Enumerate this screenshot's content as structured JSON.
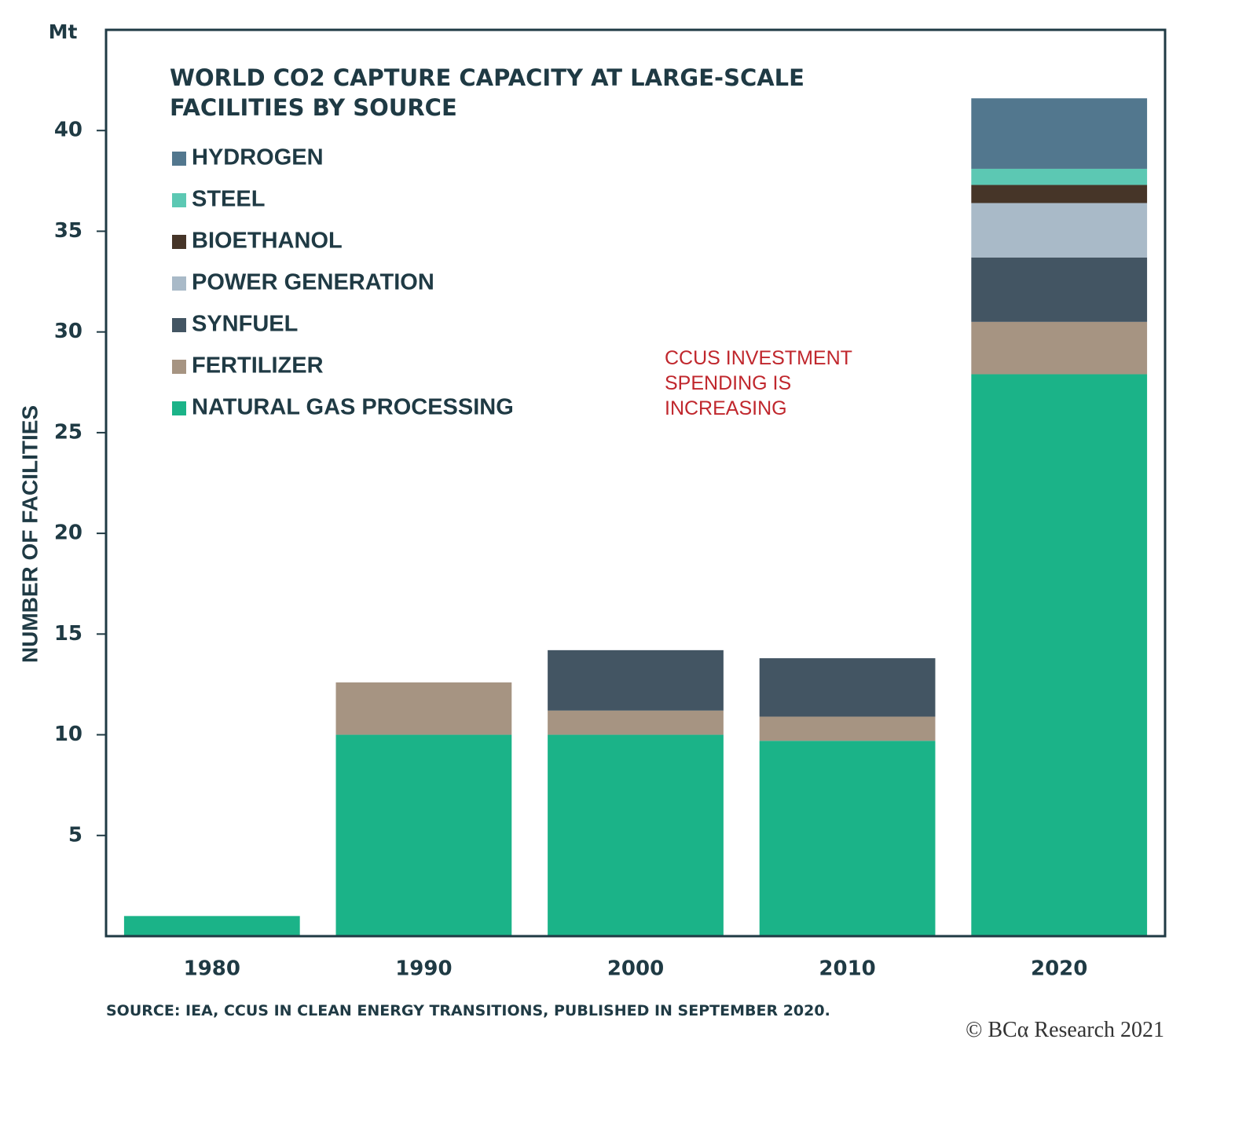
{
  "chart_data": {
    "type": "stacked-bar",
    "title": "WORLD CO2 CAPTURE CAPACITY AT LARGE-SCALE FACILITIES BY SOURCE",
    "y_unit": "Mt",
    "y_label": "NUMBER OF FACILITIES",
    "annotation": "CCUS INVESTMENT SPENDING IS INCREASING",
    "source": "SOURCE: IEA, CCUS IN CLEAN ENERGY TRANSITIONS, PUBLISHED IN SEPTEMBER 2020.",
    "credit": "© BCα Research 2021",
    "categories": [
      "1980",
      "1990",
      "2000",
      "2010",
      "2020"
    ],
    "series": [
      {
        "name": "NATURAL GAS PROCESSING",
        "color": "#1bb388",
        "values": [
          1.0,
          10.0,
          10.0,
          9.7,
          27.9
        ]
      },
      {
        "name": "FERTILIZER",
        "color": "#a69482",
        "values": [
          0,
          2.6,
          1.2,
          1.2,
          2.6
        ]
      },
      {
        "name": "SYNFUEL",
        "color": "#435563",
        "values": [
          0,
          0,
          3.0,
          2.9,
          3.2
        ]
      },
      {
        "name": "POWER GENERATION",
        "color": "#a9bac8",
        "values": [
          0,
          0,
          0,
          0,
          2.7
        ]
      },
      {
        "name": "BIOETHANOL",
        "color": "#463528",
        "values": [
          0,
          0,
          0,
          0,
          0.9
        ]
      },
      {
        "name": "STEEL",
        "color": "#5cc8b3",
        "values": [
          0,
          0,
          0,
          0,
          0.8
        ]
      },
      {
        "name": "HYDROGEN",
        "color": "#52778e",
        "values": [
          0,
          0,
          0,
          0,
          3.5
        ]
      }
    ],
    "ylim": [
      0,
      45
    ],
    "yticks": [
      5,
      10,
      15,
      20,
      25,
      30,
      35,
      40
    ],
    "grid": false
  }
}
